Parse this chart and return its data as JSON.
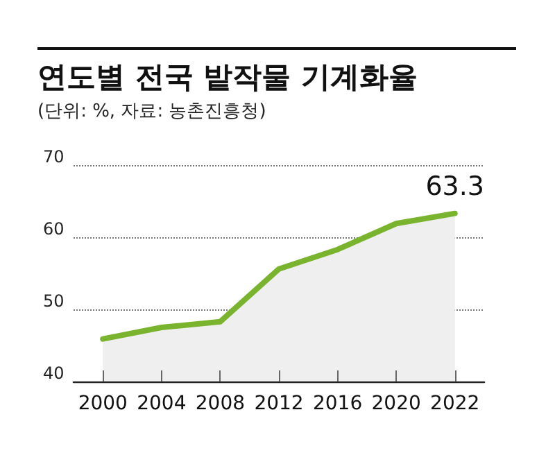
{
  "chart_data": {
    "type": "area",
    "title": "연도별 전국 밭작물 기계화율",
    "subtitle": "(단위: %, 자료: 농촌진흥청)",
    "categories": [
      "2000",
      "2004",
      "2008",
      "2012",
      "2016",
      "2020",
      "2022"
    ],
    "series": [
      {
        "color": "#7ab32e",
        "values": [
          45.9,
          47.5,
          48.3,
          55.6,
          58.3,
          61.9,
          63.3
        ],
        "value_labels": [
          null,
          null,
          null,
          null,
          null,
          null,
          "63.3"
        ]
      }
    ],
    "ylim": [
      40,
      70
    ],
    "yticks": [
      40,
      50,
      60,
      70
    ],
    "grid": "y",
    "marker": "none"
  }
}
